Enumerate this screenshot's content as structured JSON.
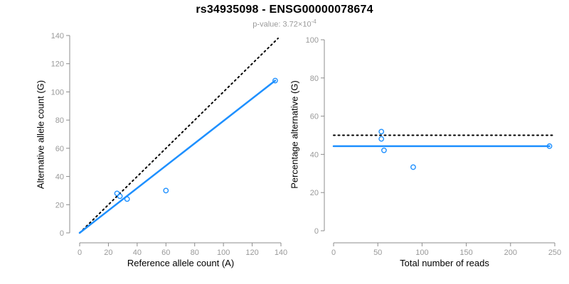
{
  "header": {
    "title": "rs34935098 - ENSG00000078674",
    "p_prefix": "p-value: 3.72×10",
    "p_exponent": "-4"
  },
  "colors": {
    "accent_blue": "#1E90FF",
    "dotted_black": "#000000",
    "axis_line": "#8c8c8c",
    "tick_label": "#999999",
    "axis_title": "#000000",
    "subtitle_gray": "#9a9a9a",
    "background": "#ffffff"
  },
  "chart_data": [
    {
      "type": "scatter",
      "name": "allele-counts-panel",
      "xlabel": "Reference allele count (A)",
      "ylabel": "Alternative allele count (G)",
      "xlim": [
        0,
        140
      ],
      "ylim": [
        0,
        140
      ],
      "xticks": [
        0,
        20,
        40,
        60,
        80,
        100,
        120,
        140
      ],
      "yticks": [
        0,
        20,
        40,
        60,
        80,
        100,
        120,
        140
      ],
      "grid": false,
      "legend": "none",
      "point_color": "#1E90FF",
      "points": [
        [
          26,
          28
        ],
        [
          28,
          26
        ],
        [
          33,
          24
        ],
        [
          60,
          30
        ],
        [
          136,
          108
        ]
      ],
      "lines": [
        {
          "name": "identity-line",
          "style": "dotted",
          "color": "#000000",
          "from": [
            0,
            0
          ],
          "to": [
            138,
            138
          ]
        },
        {
          "name": "fit-line",
          "style": "solid",
          "color": "#1E90FF",
          "from": [
            0,
            0
          ],
          "to": [
            136,
            108
          ]
        }
      ]
    },
    {
      "type": "scatter",
      "name": "percentage-vs-reads-panel",
      "xlabel": "Total number of reads",
      "ylabel": "Percentage alternative (G)",
      "xlim": [
        0,
        250
      ],
      "ylim": [
        0,
        100
      ],
      "xticks": [
        0,
        50,
        100,
        150,
        200,
        250
      ],
      "yticks": [
        0,
        20,
        40,
        60,
        80,
        100
      ],
      "grid": false,
      "legend": "none",
      "point_color": "#1E90FF",
      "points": [
        [
          54,
          51.9
        ],
        [
          54,
          48.1
        ],
        [
          57,
          42.1
        ],
        [
          90,
          33.3
        ],
        [
          244,
          44.3
        ]
      ],
      "lines": [
        {
          "name": "expected-50pct-line",
          "style": "dotted",
          "color": "#000000",
          "from": [
            0,
            50
          ],
          "to": [
            250,
            50
          ]
        },
        {
          "name": "fit-line",
          "style": "solid",
          "color": "#1E90FF",
          "from": [
            0,
            44.3
          ],
          "to": [
            244,
            44.3
          ]
        }
      ]
    }
  ]
}
